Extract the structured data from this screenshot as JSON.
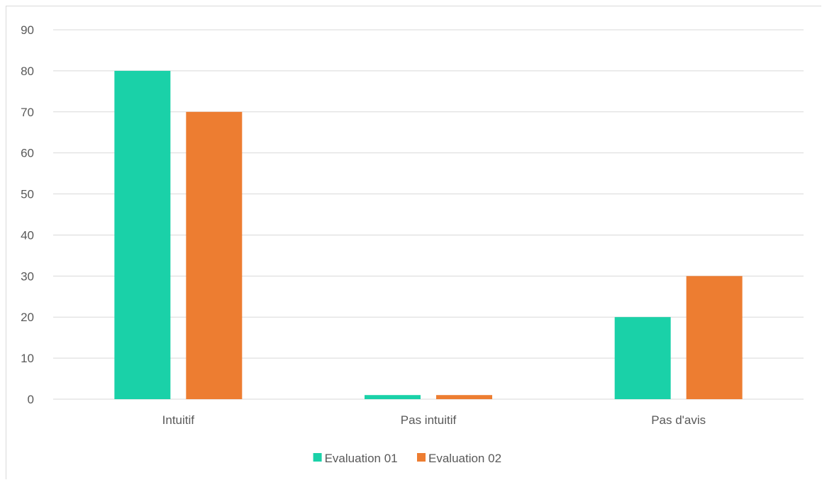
{
  "chart_data": {
    "type": "bar",
    "title": "",
    "xlabel": "",
    "ylabel": "",
    "categories": [
      "Intuitif",
      "Pas intuitif",
      "Pas d'avis"
    ],
    "series": [
      {
        "name": "Evaluation 01",
        "color": "#1ad1a8",
        "values": [
          80,
          1,
          20
        ]
      },
      {
        "name": "Evaluation 02",
        "color": "#ed7d31",
        "values": [
          70,
          1,
          30
        ]
      }
    ],
    "ylim": [
      0,
      90
    ],
    "yticks": [
      0,
      10,
      20,
      30,
      40,
      50,
      60,
      70,
      80,
      90
    ],
    "grid": true,
    "gridline_color": "#d9d9d9",
    "legend_position": "bottom"
  }
}
